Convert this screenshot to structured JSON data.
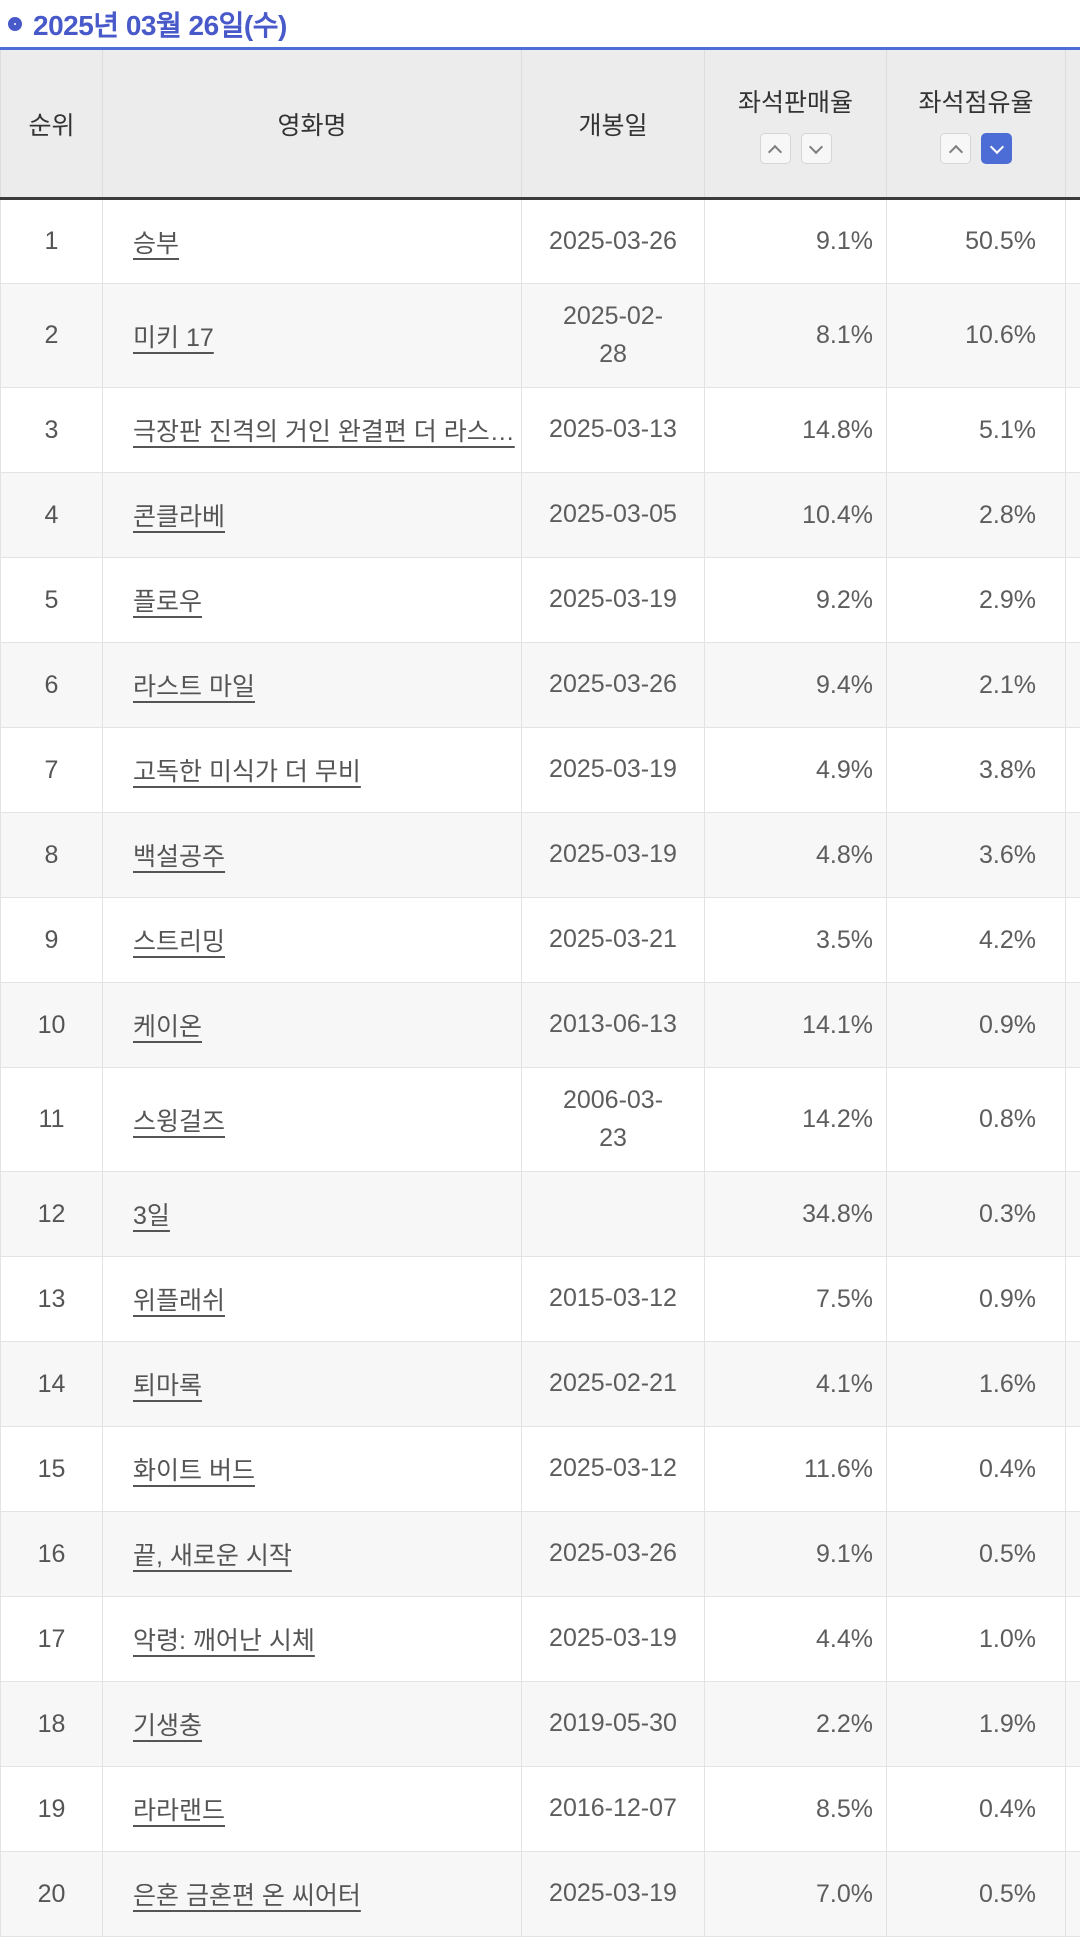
{
  "page": {
    "title": "2025년 03월 26일(수)"
  },
  "colors": {
    "accent": "#4859c9",
    "sort_active": "#4d6dd6",
    "table_top_border": "#4d6dd6",
    "header_bg": "#ececec",
    "alt_row_bg": "#f7f7f7"
  },
  "table": {
    "columns": [
      {
        "key": "rank",
        "label": "순위",
        "sortable": false
      },
      {
        "key": "title",
        "label": "영화명",
        "sortable": false
      },
      {
        "key": "release-date",
        "label": "개봉일",
        "sortable": false
      },
      {
        "key": "seat-sales-rate",
        "label": "좌석판매율",
        "sortable": true,
        "sort": null
      },
      {
        "key": "seat-share-rate",
        "label": "좌석점유율",
        "sortable": true,
        "sort": "desc"
      }
    ],
    "rows": [
      {
        "rank": "1",
        "title": "승부",
        "release_date": "2025-03-26",
        "seat_sales_rate": "9.1%",
        "seat_share_rate": "50.5%"
      },
      {
        "rank": "2",
        "title": "미키 17",
        "release_date": "2025-02-28",
        "release_date_lines": [
          "2025-02-",
          "28"
        ],
        "seat_sales_rate": "8.1%",
        "seat_share_rate": "10.6%"
      },
      {
        "rank": "3",
        "title": "극장판 진격의 거인 완결편 더 라스…",
        "release_date": "2025-03-13",
        "seat_sales_rate": "14.8%",
        "seat_share_rate": "5.1%"
      },
      {
        "rank": "4",
        "title": "콘클라베",
        "release_date": "2025-03-05",
        "seat_sales_rate": "10.4%",
        "seat_share_rate": "2.8%"
      },
      {
        "rank": "5",
        "title": "플로우",
        "release_date": "2025-03-19",
        "seat_sales_rate": "9.2%",
        "seat_share_rate": "2.9%"
      },
      {
        "rank": "6",
        "title": "라스트 마일",
        "release_date": "2025-03-26",
        "seat_sales_rate": "9.4%",
        "seat_share_rate": "2.1%"
      },
      {
        "rank": "7",
        "title": "고독한 미식가 더 무비",
        "release_date": "2025-03-19",
        "seat_sales_rate": "4.9%",
        "seat_share_rate": "3.8%"
      },
      {
        "rank": "8",
        "title": "백설공주",
        "release_date": "2025-03-19",
        "seat_sales_rate": "4.8%",
        "seat_share_rate": "3.6%"
      },
      {
        "rank": "9",
        "title": "스트리밍",
        "release_date": "2025-03-21",
        "seat_sales_rate": "3.5%",
        "seat_share_rate": "4.2%"
      },
      {
        "rank": "10",
        "title": "케이온",
        "release_date": "2013-06-13",
        "seat_sales_rate": "14.1%",
        "seat_share_rate": "0.9%"
      },
      {
        "rank": "11",
        "title": "스윙걸즈",
        "release_date": "2006-03-23",
        "release_date_lines": [
          "2006-03-",
          "23"
        ],
        "seat_sales_rate": "14.2%",
        "seat_share_rate": "0.8%"
      },
      {
        "rank": "12",
        "title": "3일",
        "release_date": "",
        "seat_sales_rate": "34.8%",
        "seat_share_rate": "0.3%"
      },
      {
        "rank": "13",
        "title": "위플래쉬",
        "release_date": "2015-03-12",
        "seat_sales_rate": "7.5%",
        "seat_share_rate": "0.9%"
      },
      {
        "rank": "14",
        "title": "퇴마록",
        "release_date": "2025-02-21",
        "seat_sales_rate": "4.1%",
        "seat_share_rate": "1.6%"
      },
      {
        "rank": "15",
        "title": "화이트 버드",
        "release_date": "2025-03-12",
        "seat_sales_rate": "11.6%",
        "seat_share_rate": "0.4%"
      },
      {
        "rank": "16",
        "title": "끝, 새로운 시작",
        "release_date": "2025-03-26",
        "seat_sales_rate": "9.1%",
        "seat_share_rate": "0.5%"
      },
      {
        "rank": "17",
        "title": "악령: 깨어난 시체",
        "release_date": "2025-03-19",
        "seat_sales_rate": "4.4%",
        "seat_share_rate": "1.0%"
      },
      {
        "rank": "18",
        "title": "기생충",
        "release_date": "2019-05-30",
        "seat_sales_rate": "2.2%",
        "seat_share_rate": "1.9%"
      },
      {
        "rank": "19",
        "title": "라라랜드",
        "release_date": "2016-12-07",
        "seat_sales_rate": "8.5%",
        "seat_share_rate": "0.4%"
      },
      {
        "rank": "20",
        "title": "은혼 금혼편 온 씨어터",
        "release_date": "2025-03-19",
        "seat_sales_rate": "7.0%",
        "seat_share_rate": "0.5%"
      }
    ]
  }
}
